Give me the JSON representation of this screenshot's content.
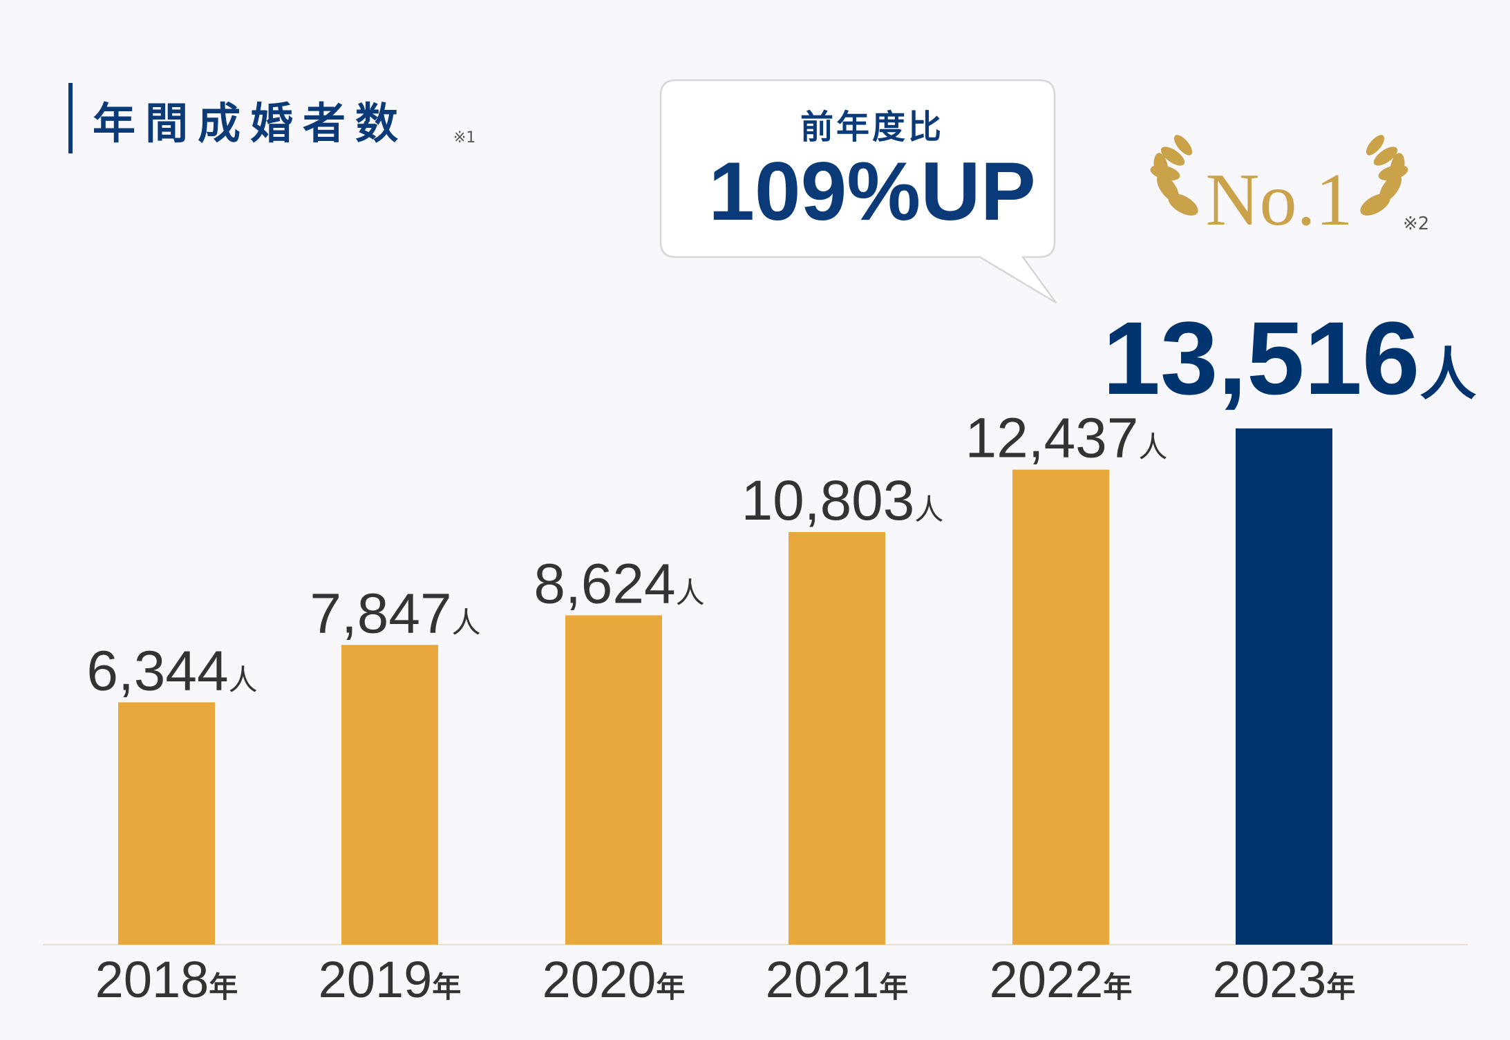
{
  "title": "年間成婚者数",
  "title_note": "※1",
  "colors": {
    "accent": "#0b3a78",
    "bar": "#e8a83b",
    "highlight_bar": "#00346f",
    "gold": "#c9a24a",
    "text": "#333333"
  },
  "callout": {
    "label": "前年度比",
    "value": "109%UP"
  },
  "badge": {
    "text": "No.1",
    "note": "※2"
  },
  "chart_data": {
    "type": "bar",
    "categories": [
      "2018",
      "2019",
      "2020",
      "2021",
      "2022",
      "2023"
    ],
    "category_suffix": "年",
    "values": [
      6344,
      7847,
      8624,
      10803,
      12437,
      13516
    ],
    "value_labels": [
      "6,344",
      "7,847",
      "8,624",
      "10,803",
      "12,437",
      "13,516"
    ],
    "unit": "人",
    "highlight_index": 5,
    "title": "年間成婚者数"
  }
}
